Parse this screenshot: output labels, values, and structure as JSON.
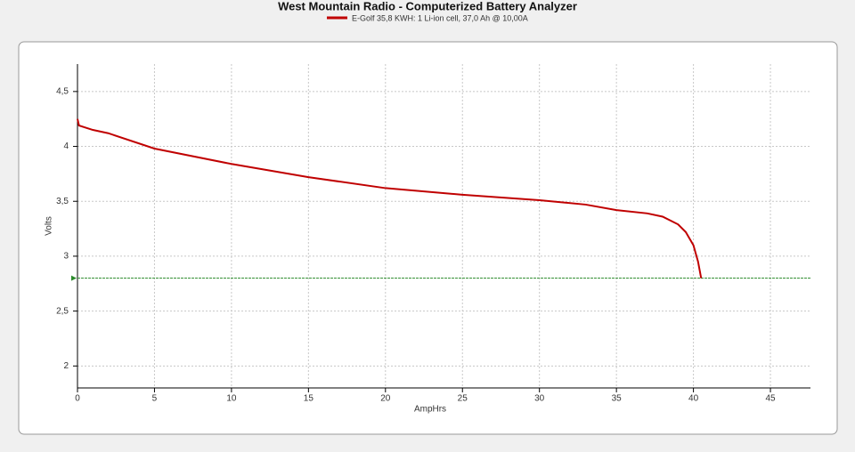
{
  "chart_data": {
    "type": "line",
    "title": "West Mountain Radio - Computerized Battery Analyzer",
    "x_label": "AmpHrs",
    "y_label": "Volts",
    "series": [
      {
        "name": "E-Golf 35,8 KWH: 1 Li-ion cell, 37,0 Ah @ 10,00A",
        "color": "#c00000",
        "x": [
          0,
          0.1,
          1,
          2,
          5,
          10,
          15,
          20,
          25,
          30,
          33,
          35,
          37,
          38,
          39,
          39.5,
          40,
          40.3,
          40.5
        ],
        "values": [
          4.25,
          4.19,
          4.15,
          4.12,
          3.98,
          3.84,
          3.72,
          3.62,
          3.56,
          3.51,
          3.47,
          3.42,
          3.39,
          3.36,
          3.29,
          3.22,
          3.1,
          2.95,
          2.8
        ]
      }
    ],
    "reference_line": {
      "value": 2.8,
      "color": "#2a8a2a"
    },
    "xlim": [
      0,
      47.6
    ],
    "xticks": [
      0,
      5,
      10,
      15,
      20,
      25,
      30,
      35,
      40,
      45
    ],
    "ylim": [
      1.8,
      4.75
    ],
    "yticks": [
      2,
      {
        "value": 2.5,
        "label": "2,5"
      },
      3,
      {
        "value": 3.5,
        "label": "3,5"
      },
      4,
      {
        "value": 4.5,
        "label": "4,5"
      }
    ],
    "grid": true
  }
}
